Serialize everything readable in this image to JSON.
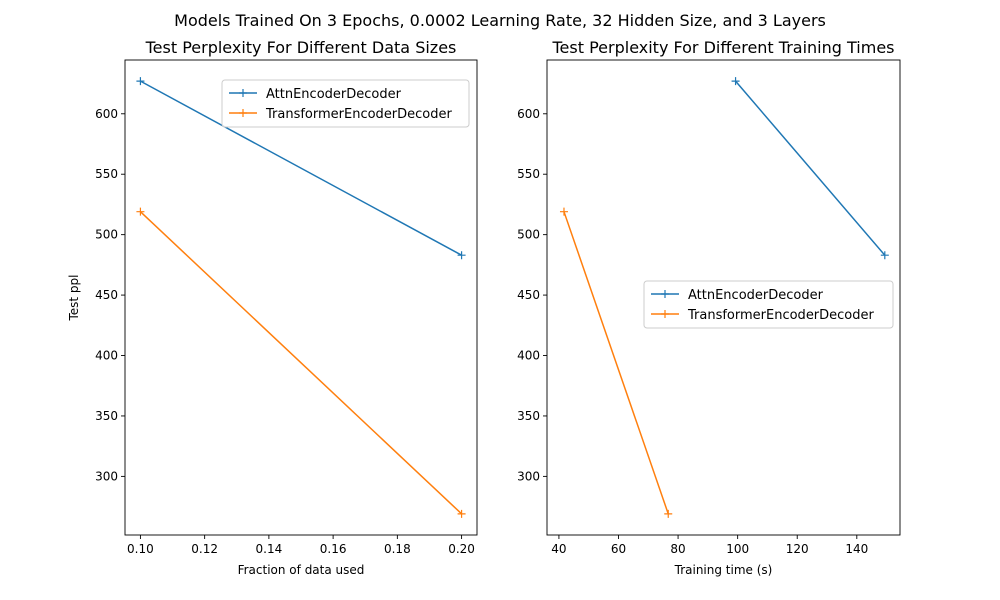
{
  "suptitle": "Models Trained On 3 Epochs, 0.0002 Learning Rate, 32 Hidden Size, and 3 Layers",
  "colors": {
    "attn": "#1f77b4",
    "transformer": "#ff7f0e"
  },
  "chart_data": [
    {
      "type": "line",
      "title": "Test Perplexity For Different Data Sizes",
      "xlabel": "Fraction of data used",
      "ylabel": "Test ppl",
      "xlim": [
        0.0952,
        0.2048
      ],
      "ylim": [
        251.5,
        644.5
      ],
      "xticks": [
        "0.10",
        "0.12",
        "0.14",
        "0.16",
        "0.18",
        "0.20"
      ],
      "yticks": [
        "300",
        "350",
        "400",
        "450",
        "500",
        "550",
        "600"
      ],
      "grid": false,
      "legend_position": "upper right",
      "series": [
        {
          "name": "AttnEncoderDecoder",
          "color": "#1f77b4",
          "marker": "+",
          "x": [
            0.1,
            0.2
          ],
          "y": [
            627,
            483
          ]
        },
        {
          "name": "TransformerEncoderDecoder",
          "color": "#ff7f0e",
          "marker": "+",
          "x": [
            0.1,
            0.2
          ],
          "y": [
            519,
            269
          ]
        }
      ]
    },
    {
      "type": "line",
      "title": "Test Perplexity For Different Training Times",
      "xlabel": "Training time (s)",
      "ylabel": "",
      "xlim": [
        36.0,
        154.5
      ],
      "ylim": [
        251.5,
        644.5
      ],
      "xticks": [
        "40",
        "60",
        "80",
        "100",
        "120",
        "140"
      ],
      "yticks": [
        "300",
        "350",
        "400",
        "450",
        "500",
        "550",
        "600"
      ],
      "grid": false,
      "legend_position": "center right",
      "series": [
        {
          "name": "AttnEncoderDecoder",
          "color": "#1f77b4",
          "marker": "+",
          "x": [
            99.3,
            149.4
          ],
          "y": [
            627,
            483
          ]
        },
        {
          "name": "TransformerEncoderDecoder",
          "color": "#ff7f0e",
          "marker": "+",
          "x": [
            41.7,
            76.7
          ],
          "y": [
            519,
            269
          ]
        }
      ]
    }
  ]
}
